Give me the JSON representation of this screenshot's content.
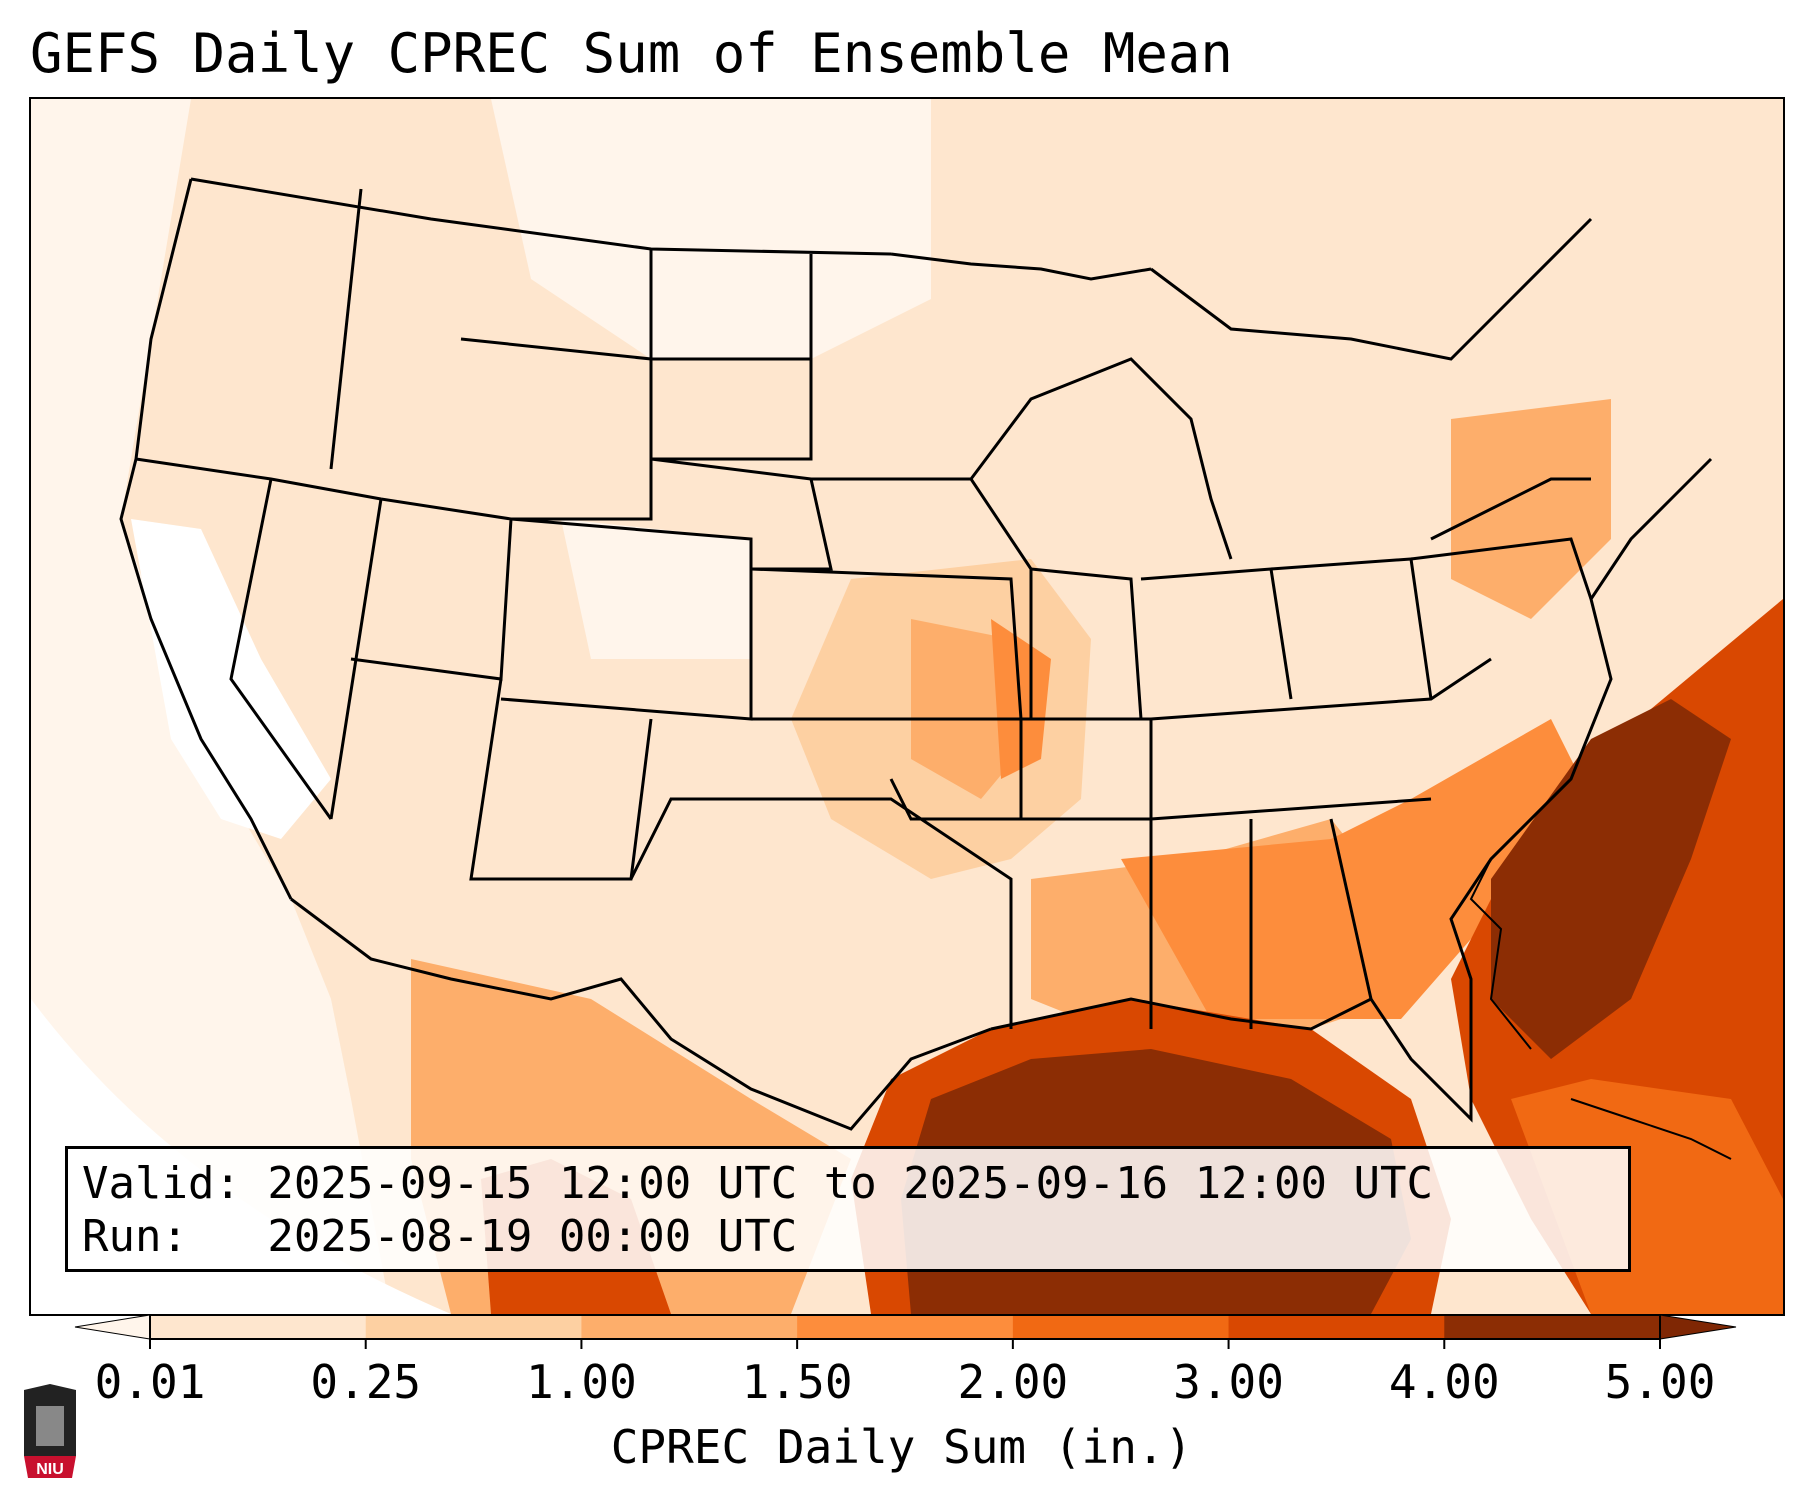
{
  "title": "GEFS Daily CPREC Sum of Ensemble Mean",
  "info": {
    "valid_line": "Valid: 2025-09-15 12:00 UTC to 2025-09-16 12:00 UTC",
    "run_line": "Run:   2025-08-19 00:00 UTC"
  },
  "colorbar": {
    "label": "CPREC Daily Sum (in.)",
    "ticks": [
      "0.01",
      "0.25",
      "1.00",
      "1.50",
      "2.00",
      "3.00",
      "4.00",
      "5.00"
    ],
    "colors": [
      "#fff5eb",
      "#fee6ce",
      "#fdd0a2",
      "#fdae6b",
      "#fd8d3c",
      "#f16913",
      "#d94801",
      "#8c2d04"
    ],
    "under_color": "#ffffff",
    "over_color": "#7f2704"
  },
  "logo": {
    "text": "NIU",
    "accent": "#c8102e"
  },
  "colors": {
    "land_base": "#fee6ce",
    "gulf": "#8c2d04",
    "atlantic": "#d94801"
  }
}
